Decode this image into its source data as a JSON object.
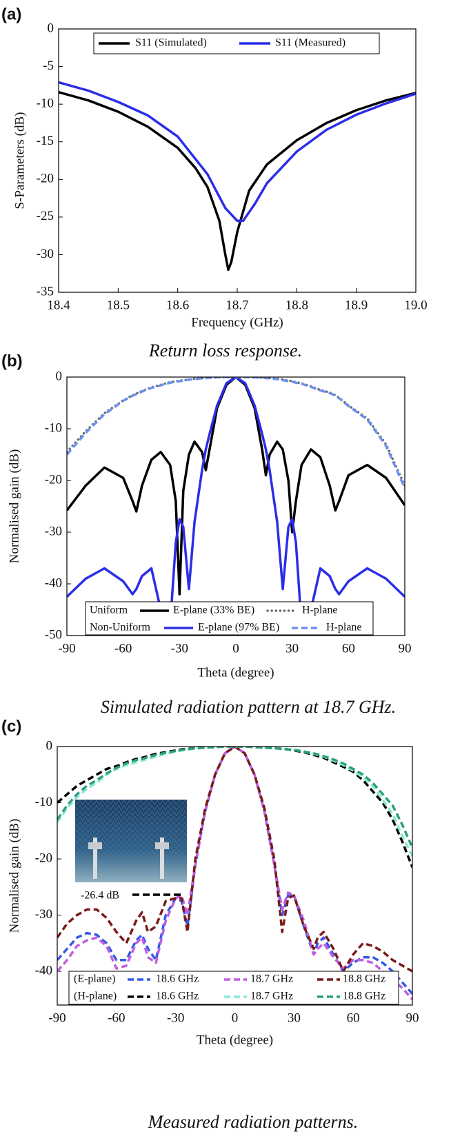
{
  "chart_data": [
    {
      "type": "line",
      "panel_label": "(a)",
      "caption": "Return loss response.",
      "xlabel": "Frequency (GHz)",
      "ylabel": "S-Parameters (dB)",
      "xlim": [
        18.4,
        19.0
      ],
      "ylim": [
        -35,
        0
      ],
      "xticks": [
        18.4,
        18.5,
        18.6,
        18.7,
        18.8,
        18.9,
        {
          "value": 19.0,
          "label": "19.0"
        }
      ],
      "yticks": [
        0,
        -5,
        -10,
        -15,
        -20,
        -25,
        -30,
        -35
      ],
      "series": [
        {
          "name": "S11 (Simulated)",
          "color": "#000000",
          "dash": "solid",
          "x": [
            18.4,
            18.45,
            18.5,
            18.55,
            18.6,
            18.63,
            18.65,
            18.67,
            18.68,
            18.685,
            18.69,
            18.7,
            18.72,
            18.75,
            18.8,
            18.85,
            18.9,
            18.95,
            19.0
          ],
          "values": [
            -8.4,
            -9.5,
            -11,
            -13,
            -15.8,
            -18.5,
            -21,
            -25.5,
            -30,
            -32,
            -31,
            -27,
            -21.5,
            -18,
            -14.8,
            -12.5,
            -10.8,
            -9.5,
            -8.5
          ]
        },
        {
          "name": "S11 (Measured)",
          "color": "#2a2ee8",
          "dash": "solid",
          "x": [
            18.4,
            18.45,
            18.5,
            18.55,
            18.6,
            18.65,
            18.68,
            18.7,
            18.71,
            18.73,
            18.75,
            18.8,
            18.85,
            18.9,
            18.95,
            19.0
          ],
          "values": [
            -7.1,
            -8.2,
            -9.7,
            -11.5,
            -14.3,
            -19.3,
            -23.8,
            -25.5,
            -25.5,
            -23.2,
            -20.5,
            -16.3,
            -13.4,
            -11.4,
            -9.9,
            -8.6
          ]
        }
      ]
    },
    {
      "type": "line",
      "panel_label": "(b)",
      "caption": "Simulated radiation pattern at 18.7 GHz.",
      "xlabel": "Theta (degree)",
      "ylabel": "Normalised gain (dB)",
      "xlim": [
        -90,
        90
      ],
      "ylim": [
        -50,
        0
      ],
      "xticks": [
        -90,
        -60,
        -30,
        0,
        30,
        60,
        90
      ],
      "yticks": [
        0,
        -10,
        -20,
        -30,
        -40,
        -50
      ],
      "x": [
        -90,
        -80,
        -70,
        -60,
        -55,
        -53,
        -50,
        -45,
        -40,
        -35,
        -32,
        -30,
        -28,
        -25,
        -22,
        -18,
        -16,
        -14,
        -10,
        -5,
        0,
        5,
        10,
        14,
        16,
        18,
        22,
        25,
        28,
        30,
        32,
        35,
        40,
        45,
        50,
        53,
        55,
        60,
        70,
        80,
        90
      ],
      "series": [
        {
          "group": "Uniform",
          "name": "E-plane (33% BE)",
          "color": "#000000",
          "dash": "solid",
          "values": [
            -25.8,
            -21,
            -17.5,
            -19.5,
            -24,
            -26,
            -21,
            -16,
            -14.5,
            -17,
            -24,
            -42,
            -22,
            -15,
            -12.5,
            -14.5,
            -18,
            -14,
            -6,
            -1.5,
            0,
            -1.5,
            -6,
            -14,
            -19,
            -15,
            -12.5,
            -14,
            -20,
            -30,
            -24,
            -17,
            -14,
            -15.5,
            -21,
            -25.8,
            -24,
            -19,
            -17,
            -19.5,
            -24.8
          ]
        },
        {
          "group": "Uniform",
          "name": "H-plane",
          "color": "#5f6f62",
          "dash": "dot",
          "values": [
            -14.5,
            -10.5,
            -7,
            -4.5,
            -3.5,
            -3.2,
            -2.7,
            -2,
            -1.5,
            -1,
            -0.8,
            -0.7,
            -0.6,
            -0.5,
            -0.3,
            -0.2,
            -0.15,
            -0.1,
            -0.05,
            0,
            0,
            0,
            -0.05,
            -0.1,
            -0.15,
            -0.2,
            -0.3,
            -0.5,
            -0.7,
            -0.8,
            -1,
            -1.2,
            -1.8,
            -2.5,
            -3,
            -3.5,
            -4,
            -5.5,
            -8,
            -13,
            -21
          ]
        },
        {
          "group": "Non-Uniform",
          "name": "E-plane (97% BE)",
          "color": "#2a2ee8",
          "dash": "solid",
          "values": [
            -42.5,
            -39,
            -37,
            -39.5,
            -42,
            -41,
            -38.5,
            -37,
            -45,
            -48,
            -32,
            -27.5,
            -29,
            -41,
            -28,
            -18,
            -14,
            -11,
            -5.5,
            -1.2,
            0,
            -1.2,
            -5.5,
            -11,
            -14,
            -18,
            -28,
            -41,
            -29,
            -27.5,
            -32,
            -48,
            -45,
            -37,
            -38.5,
            -41,
            -42,
            -39.5,
            -37,
            -39,
            -42.5
          ]
        },
        {
          "group": "Non-Uniform",
          "name": "H-plane",
          "color": "#6f8ff0",
          "dash": "dash",
          "values": [
            -15,
            -10.8,
            -7.2,
            -4.6,
            -3.6,
            -3.3,
            -2.8,
            -2.1,
            -1.6,
            -1.1,
            -0.9,
            -0.8,
            -0.7,
            -0.5,
            -0.4,
            -0.25,
            -0.2,
            -0.15,
            -0.05,
            0,
            0,
            0,
            -0.05,
            -0.15,
            -0.2,
            -0.25,
            -0.4,
            -0.6,
            -0.8,
            -0.9,
            -1.1,
            -1.3,
            -1.9,
            -2.6,
            -3.1,
            -3.6,
            -4.1,
            -5.6,
            -8.2,
            -13.3,
            -21.5
          ]
        }
      ]
    },
    {
      "type": "line",
      "panel_label": "(c)",
      "caption": "Measured radiation patterns.",
      "xlabel": "Theta (degree)",
      "ylabel": "Normalised gain (dB)",
      "annotation": "-26.4 dB",
      "xlim": [
        -90,
        90
      ],
      "ylim": [
        -46,
        0
      ],
      "xticks": [
        -90,
        -60,
        -30,
        0,
        30,
        60,
        90
      ],
      "yticks": [
        0,
        -10,
        -20,
        -30,
        -40
      ],
      "x": [
        -90,
        -85,
        -80,
        -75,
        -70,
        -65,
        -60,
        -55,
        -50,
        -47,
        -44,
        -40,
        -35,
        -30,
        -27,
        -24,
        -20,
        -15,
        -10,
        -5,
        0,
        5,
        10,
        15,
        20,
        24,
        27,
        30,
        35,
        40,
        42,
        45,
        50,
        55,
        60,
        65,
        70,
        75,
        80,
        85,
        90
      ],
      "series": [
        {
          "group": "(E-plane)",
          "name": "18.6 GHz",
          "color": "#3558e8",
          "dash": "dash",
          "values": [
            -38,
            -36,
            -34,
            -33.2,
            -33.5,
            -35,
            -38,
            -38,
            -34.5,
            -33.5,
            -36,
            -38,
            -30,
            -27,
            -27.5,
            -32,
            -21,
            -11.5,
            -5,
            -1.2,
            0,
            -1.2,
            -5,
            -11.5,
            -21,
            -30,
            -26.5,
            -26.5,
            -32,
            -37,
            -35,
            -34,
            -37,
            -40,
            -38.5,
            -37.5,
            -37.5,
            -38.5,
            -40,
            -42,
            -44
          ]
        },
        {
          "group": "(E-plane)",
          "name": "18.7 GHz",
          "color": "#c05ee0",
          "dash": "dash",
          "values": [
            -40,
            -38,
            -35.5,
            -34.5,
            -34,
            -35.5,
            -39.5,
            -39,
            -35,
            -34,
            -37.5,
            -38.5,
            -31,
            -27,
            -26.5,
            -30,
            -21,
            -11.5,
            -5,
            -1.2,
            0,
            -1.2,
            -5,
            -11.5,
            -21,
            -29,
            -26,
            -26.5,
            -31,
            -37,
            -36,
            -35,
            -37.5,
            -39.5,
            -38,
            -38,
            -38.5,
            -40,
            -41.5,
            -43,
            -45
          ]
        },
        {
          "group": "(E-plane)",
          "name": "18.8 GHz",
          "color": "#7a1a1a",
          "dash": "dash",
          "values": [
            -34,
            -31.5,
            -30,
            -29,
            -29,
            -30.5,
            -33,
            -35,
            -31,
            -29.5,
            -33,
            -32,
            -27.5,
            -27,
            -27,
            -33,
            -20,
            -11,
            -5,
            -1.2,
            0,
            -1.2,
            -5,
            -11,
            -20,
            -33,
            -27,
            -26.5,
            -32,
            -36,
            -34,
            -33,
            -36,
            -40,
            -37,
            -35,
            -35.5,
            -36.5,
            -38,
            -39,
            -40
          ]
        },
        {
          "group": "(H-plane)",
          "name": "18.6 GHz",
          "color": "#000000",
          "dash": "dash",
          "values": [
            -10,
            -8.5,
            -7,
            -6,
            -5,
            -4,
            -3.5,
            -2.8,
            -2.2,
            -2,
            -1.7,
            -1.3,
            -1,
            -0.7,
            -0.5,
            -0.4,
            -0.3,
            -0.2,
            -0.1,
            0,
            0,
            0,
            -0.1,
            -0.2,
            -0.3,
            -0.4,
            -0.5,
            -0.7,
            -1,
            -1.5,
            -1.7,
            -2,
            -2.8,
            -3.6,
            -4.5,
            -6,
            -8,
            -10,
            -13,
            -17,
            -21.5
          ]
        },
        {
          "group": "(H-plane)",
          "name": "18.7 GHz",
          "color": "#8ee8d6",
          "dash": "dash",
          "values": [
            -13.5,
            -11,
            -9,
            -7.5,
            -6.5,
            -5,
            -4,
            -3.3,
            -2.8,
            -2.5,
            -2.2,
            -1.8,
            -1.3,
            -0.9,
            -0.7,
            -0.5,
            -0.4,
            -0.2,
            -0.1,
            0,
            0,
            0,
            -0.1,
            -0.2,
            -0.3,
            -0.4,
            -0.5,
            -0.6,
            -0.9,
            -1.3,
            -1.5,
            -1.8,
            -2.5,
            -3.3,
            -4.3,
            -5.5,
            -7,
            -9.5,
            -12,
            -16,
            -19.5
          ]
        },
        {
          "group": "(H-plane)",
          "name": "18.8 GHz",
          "color": "#2aa07a",
          "dash": "dash",
          "values": [
            -13,
            -10.5,
            -8.5,
            -7,
            -6,
            -4.8,
            -3.8,
            -3,
            -2.4,
            -2.2,
            -1.9,
            -1.5,
            -1.1,
            -0.8,
            -0.6,
            -0.5,
            -0.3,
            -0.2,
            -0.1,
            0,
            0,
            0,
            -0.1,
            -0.2,
            -0.3,
            -0.4,
            -0.5,
            -0.6,
            -0.9,
            -1.2,
            -1.4,
            -1.7,
            -2.3,
            -3,
            -4,
            -5,
            -6.5,
            -8.5,
            -10.5,
            -14,
            -18
          ]
        }
      ]
    }
  ]
}
